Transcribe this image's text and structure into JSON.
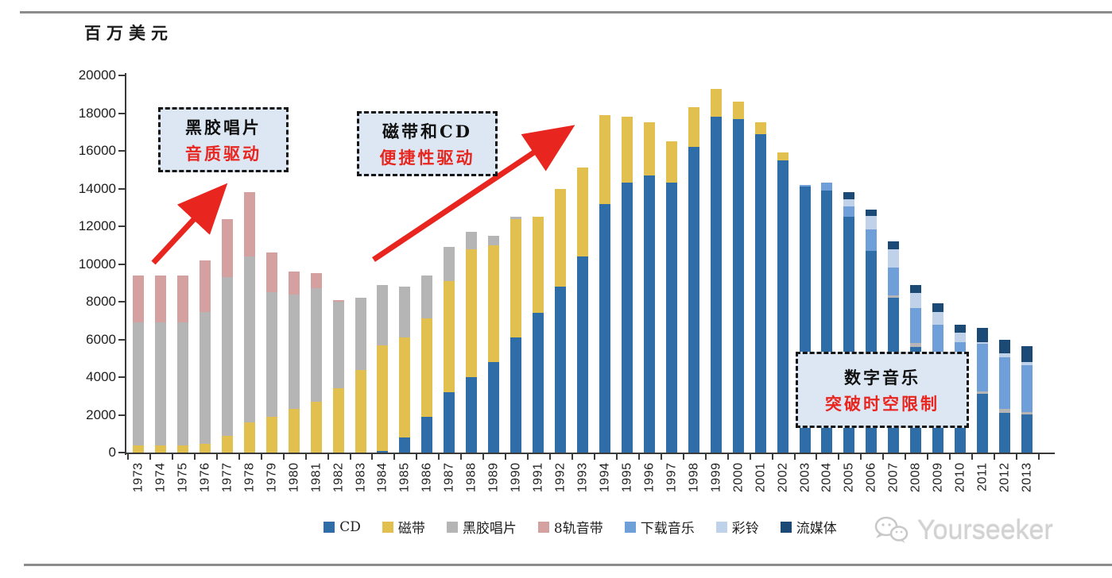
{
  "page": {
    "watermark": "Yourseeker"
  },
  "annotations": {
    "vinyl": {
      "line1": "黑胶唱片",
      "line2": "音质驱动"
    },
    "tape_cd": {
      "line1": "磁带和CD",
      "line2": "便捷性驱动"
    },
    "digital": {
      "line1": "数字音乐",
      "line2": "突破时空限制"
    }
  },
  "chart_data": {
    "type": "bar",
    "stacked": true,
    "unit_label": "百万美元",
    "ylabel": "百万美元",
    "xlabel": "",
    "ylim": [
      0,
      20000
    ],
    "ytick_step": 2000,
    "grid": false,
    "legend_position": "bottom",
    "accent_red": "#e8251f",
    "categories": [
      1973,
      1974,
      1975,
      1976,
      1977,
      1978,
      1979,
      1980,
      1981,
      1982,
      1983,
      1984,
      1985,
      1986,
      1987,
      1988,
      1989,
      1990,
      1991,
      1992,
      1993,
      1994,
      1995,
      1996,
      1997,
      1998,
      1999,
      2000,
      2001,
      2002,
      2003,
      2004,
      2005,
      2006,
      2007,
      2008,
      2009,
      2010,
      2011,
      2012,
      2013
    ],
    "series": [
      {
        "name": "CD",
        "color": "#2e6da8",
        "values": [
          0,
          0,
          0,
          0,
          0,
          0,
          0,
          0,
          0,
          0,
          0,
          100,
          800,
          1900,
          3200,
          4000,
          4800,
          6100,
          7400,
          8800,
          10400,
          13200,
          14300,
          14700,
          14300,
          16200,
          17800,
          17700,
          16900,
          15500,
          14100,
          13900,
          12500,
          10700,
          8200,
          5600,
          4800,
          3000,
          3100,
          2100,
          2000
        ]
      },
      {
        "name": "磁带",
        "color": "#e2c04f",
        "values": [
          400,
          400,
          400,
          450,
          900,
          1600,
          1900,
          2300,
          2700,
          3400,
          4400,
          5600,
          5300,
          5200,
          5900,
          6800,
          6200,
          6300,
          5100,
          5200,
          4700,
          4700,
          3500,
          2800,
          2200,
          2100,
          1500,
          900,
          600,
          400,
          0,
          0,
          0,
          0,
          0,
          0,
          0,
          0,
          0,
          0,
          0
        ]
      },
      {
        "name": "黑胶唱片",
        "color": "#b5b5b5",
        "values": [
          6500,
          6500,
          6500,
          7000,
          8400,
          8800,
          6600,
          6100,
          6000,
          4600,
          3800,
          3200,
          2700,
          2300,
          1800,
          900,
          500,
          100,
          0,
          0,
          0,
          0,
          0,
          0,
          0,
          0,
          0,
          0,
          0,
          0,
          0,
          0,
          0,
          0,
          150,
          200,
          150,
          150,
          150,
          200,
          150
        ]
      },
      {
        "name": "8轨音带",
        "color": "#d4a0a0",
        "values": [
          2500,
          2500,
          2500,
          2750,
          3100,
          3400,
          2100,
          1200,
          800,
          100,
          0,
          0,
          0,
          0,
          0,
          0,
          0,
          0,
          0,
          0,
          0,
          0,
          0,
          0,
          0,
          0,
          0,
          0,
          0,
          0,
          0,
          0,
          0,
          0,
          0,
          0,
          0,
          0,
          0,
          0,
          0
        ]
      },
      {
        "name": "下载音乐",
        "color": "#6f9fd8",
        "values": [
          0,
          0,
          0,
          0,
          0,
          0,
          0,
          0,
          0,
          0,
          0,
          0,
          0,
          0,
          0,
          0,
          0,
          0,
          0,
          0,
          0,
          0,
          0,
          0,
          0,
          0,
          0,
          0,
          0,
          0,
          100,
          400,
          550,
          1150,
          1450,
          1870,
          1850,
          2700,
          2500,
          2750,
          2500
        ]
      },
      {
        "name": "彩铃",
        "color": "#bfd2ea",
        "values": [
          0,
          0,
          0,
          0,
          0,
          0,
          0,
          0,
          0,
          0,
          0,
          0,
          0,
          0,
          0,
          0,
          0,
          0,
          0,
          0,
          0,
          0,
          0,
          0,
          0,
          0,
          0,
          0,
          0,
          0,
          0,
          0,
          400,
          700,
          1000,
          800,
          650,
          500,
          100,
          200,
          130
        ]
      },
      {
        "name": "流媒体",
        "color": "#1b4a76",
        "values": [
          0,
          0,
          0,
          0,
          0,
          0,
          0,
          0,
          0,
          0,
          0,
          0,
          0,
          0,
          0,
          0,
          0,
          0,
          0,
          0,
          0,
          0,
          0,
          0,
          0,
          0,
          0,
          0,
          0,
          0,
          0,
          0,
          350,
          350,
          400,
          430,
          450,
          450,
          750,
          720,
          870
        ]
      }
    ]
  }
}
